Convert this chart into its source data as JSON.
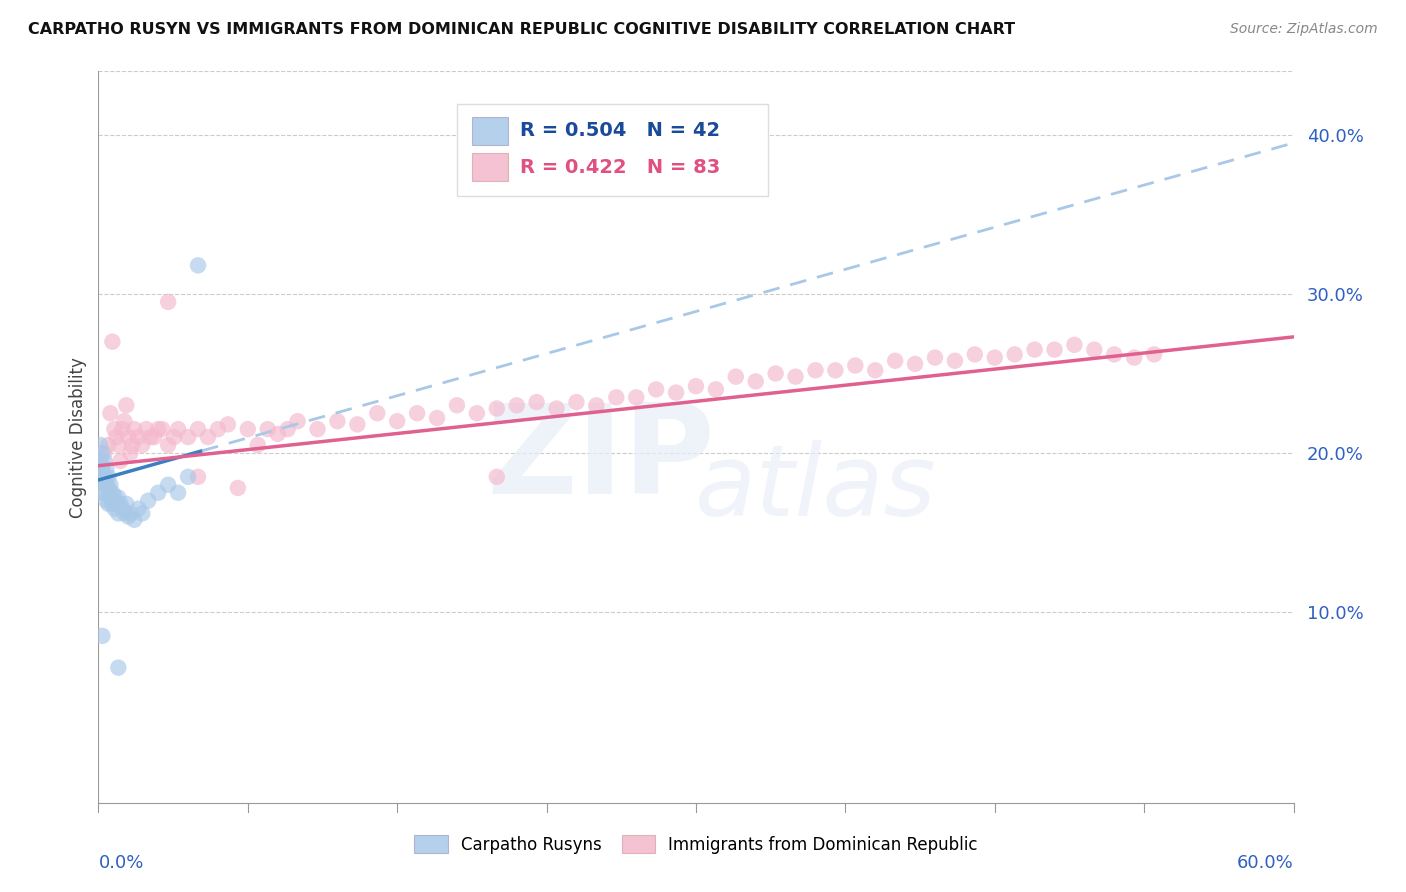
{
  "title": "CARPATHO RUSYN VS IMMIGRANTS FROM DOMINICAN REPUBLIC COGNITIVE DISABILITY CORRELATION CHART",
  "source": "Source: ZipAtlas.com",
  "ylabel": "Cognitive Disability",
  "series1_name": "Carpatho Rusyns",
  "series2_name": "Immigrants from Dominican Republic",
  "series1_color": "#a8c8e8",
  "series2_color": "#f4b8cc",
  "trend1_color": "#3a7fc1",
  "trend2_color": "#e06090",
  "legend_text_color": "#1a3a6b",
  "legend_val_color": "#1a5cb0",
  "xlim": [
    0.0,
    0.6
  ],
  "ylim": [
    -0.02,
    0.44
  ],
  "yticks": [
    0.1,
    0.2,
    0.3,
    0.4
  ],
  "ytick_labels": [
    "10.0%",
    "20.0%",
    "30.0%",
    "40.0%"
  ],
  "grid_color": "#cccccc",
  "blue_x": [
    0.001,
    0.001,
    0.001,
    0.002,
    0.002,
    0.002,
    0.002,
    0.003,
    0.003,
    0.003,
    0.004,
    0.004,
    0.004,
    0.005,
    0.005,
    0.005,
    0.006,
    0.006,
    0.007,
    0.007,
    0.008,
    0.008,
    0.009,
    0.01,
    0.01,
    0.011,
    0.012,
    0.013,
    0.014,
    0.015,
    0.016,
    0.018,
    0.02,
    0.022,
    0.025,
    0.03,
    0.035,
    0.04,
    0.045,
    0.05,
    0.002,
    0.01
  ],
  "blue_y": [
    0.205,
    0.195,
    0.185,
    0.2,
    0.19,
    0.185,
    0.175,
    0.195,
    0.185,
    0.175,
    0.19,
    0.18,
    0.17,
    0.185,
    0.178,
    0.168,
    0.18,
    0.172,
    0.175,
    0.168,
    0.173,
    0.165,
    0.168,
    0.172,
    0.162,
    0.168,
    0.165,
    0.162,
    0.168,
    0.16,
    0.162,
    0.158,
    0.165,
    0.162,
    0.17,
    0.175,
    0.18,
    0.175,
    0.185,
    0.318,
    0.085,
    0.065
  ],
  "pink_x": [
    0.003,
    0.005,
    0.006,
    0.007,
    0.008,
    0.009,
    0.01,
    0.011,
    0.012,
    0.013,
    0.014,
    0.015,
    0.016,
    0.017,
    0.018,
    0.02,
    0.022,
    0.024,
    0.026,
    0.028,
    0.03,
    0.032,
    0.035,
    0.038,
    0.04,
    0.045,
    0.05,
    0.055,
    0.06,
    0.065,
    0.07,
    0.075,
    0.08,
    0.085,
    0.09,
    0.095,
    0.1,
    0.11,
    0.12,
    0.13,
    0.14,
    0.15,
    0.16,
    0.17,
    0.18,
    0.19,
    0.2,
    0.21,
    0.22,
    0.23,
    0.24,
    0.25,
    0.26,
    0.27,
    0.28,
    0.29,
    0.3,
    0.31,
    0.32,
    0.33,
    0.34,
    0.35,
    0.36,
    0.37,
    0.38,
    0.39,
    0.4,
    0.41,
    0.42,
    0.43,
    0.44,
    0.45,
    0.46,
    0.47,
    0.48,
    0.49,
    0.5,
    0.51,
    0.52,
    0.53,
    0.035,
    0.05,
    0.2
  ],
  "pink_y": [
    0.2,
    0.205,
    0.225,
    0.27,
    0.215,
    0.21,
    0.205,
    0.195,
    0.215,
    0.22,
    0.23,
    0.21,
    0.2,
    0.205,
    0.215,
    0.21,
    0.205,
    0.215,
    0.21,
    0.21,
    0.215,
    0.215,
    0.205,
    0.21,
    0.215,
    0.21,
    0.215,
    0.21,
    0.215,
    0.218,
    0.178,
    0.215,
    0.205,
    0.215,
    0.212,
    0.215,
    0.22,
    0.215,
    0.22,
    0.218,
    0.225,
    0.22,
    0.225,
    0.222,
    0.23,
    0.225,
    0.228,
    0.23,
    0.232,
    0.228,
    0.232,
    0.23,
    0.235,
    0.235,
    0.24,
    0.238,
    0.242,
    0.24,
    0.248,
    0.245,
    0.25,
    0.248,
    0.252,
    0.252,
    0.255,
    0.252,
    0.258,
    0.256,
    0.26,
    0.258,
    0.262,
    0.26,
    0.262,
    0.265,
    0.265,
    0.268,
    0.265,
    0.262,
    0.26,
    0.262,
    0.295,
    0.185,
    0.185
  ],
  "trend1_x0": 0.0,
  "trend1_x_solid_end": 0.052,
  "trend1_x1": 0.6,
  "trend1_y0": 0.183,
  "trend1_y1": 0.395,
  "trend2_x0": 0.0,
  "trend2_x1": 0.6,
  "trend2_y0": 0.192,
  "trend2_y1": 0.273
}
